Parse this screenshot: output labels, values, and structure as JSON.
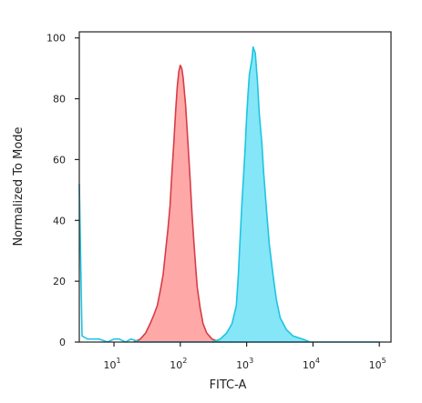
{
  "chart_data": {
    "type": "area",
    "title": "",
    "xlabel": "FITC-A",
    "ylabel": "Normalized To Mode",
    "x_scale": "log",
    "xlim": [
      3,
      150000
    ],
    "ylim": [
      0,
      102
    ],
    "grid": false,
    "x_ticks": [
      {
        "base": "10",
        "exp": "1",
        "value": 10
      },
      {
        "base": "10",
        "exp": "2",
        "value": 100
      },
      {
        "base": "10",
        "exp": "3",
        "value": 1000
      },
      {
        "base": "10",
        "exp": "4",
        "value": 10000
      },
      {
        "base": "10",
        "exp": "5",
        "value": 100000
      }
    ],
    "y_ticks": [
      "0",
      "20",
      "40",
      "60",
      "80",
      "100"
    ],
    "series": [
      {
        "color": "#d83c46",
        "fill": "#ff9090",
        "points": [
          [
            20,
            0
          ],
          [
            25,
            1
          ],
          [
            30,
            3
          ],
          [
            35,
            6
          ],
          [
            40,
            9
          ],
          [
            45,
            12
          ],
          [
            50,
            17
          ],
          [
            55,
            22
          ],
          [
            60,
            30
          ],
          [
            65,
            37
          ],
          [
            70,
            45
          ],
          [
            75,
            56
          ],
          [
            80,
            66
          ],
          [
            85,
            76
          ],
          [
            90,
            84
          ],
          [
            95,
            89
          ],
          [
            100,
            91
          ],
          [
            105,
            90
          ],
          [
            110,
            87
          ],
          [
            120,
            78
          ],
          [
            130,
            66
          ],
          [
            140,
            54
          ],
          [
            150,
            42
          ],
          [
            160,
            33
          ],
          [
            170,
            25
          ],
          [
            180,
            18
          ],
          [
            200,
            11
          ],
          [
            220,
            6
          ],
          [
            250,
            3
          ],
          [
            300,
            1
          ],
          [
            400,
            0
          ]
        ]
      },
      {
        "color": "#1dc5e2",
        "fill": "#63dff5",
        "points": [
          [
            300,
            0
          ],
          [
            400,
            1
          ],
          [
            500,
            3
          ],
          [
            600,
            6
          ],
          [
            700,
            12
          ],
          [
            750,
            22
          ],
          [
            800,
            35
          ],
          [
            850,
            46
          ],
          [
            900,
            55
          ],
          [
            950,
            64
          ],
          [
            1000,
            74
          ],
          [
            1050,
            82
          ],
          [
            1100,
            88
          ],
          [
            1200,
            93
          ],
          [
            1250,
            97
          ],
          [
            1350,
            95
          ],
          [
            1450,
            86
          ],
          [
            1550,
            75
          ],
          [
            1700,
            65
          ],
          [
            1800,
            56
          ],
          [
            2000,
            43
          ],
          [
            2200,
            32
          ],
          [
            2500,
            22
          ],
          [
            2800,
            14
          ],
          [
            3200,
            8
          ],
          [
            4000,
            4
          ],
          [
            5000,
            2
          ],
          [
            7000,
            1
          ],
          [
            9000,
            0
          ]
        ]
      },
      {
        "color": "#1dc5e2",
        "fill": "none",
        "points": [
          [
            3,
            52
          ],
          [
            3.3,
            2
          ],
          [
            4,
            1
          ],
          [
            6,
            1
          ],
          [
            8,
            0
          ],
          [
            10,
            1
          ],
          [
            12,
            1
          ],
          [
            15,
            0
          ],
          [
            18,
            1
          ],
          [
            25,
            0
          ],
          [
            150,
            0
          ],
          [
            1000,
            0
          ],
          [
            20000,
            0
          ],
          [
            100000,
            0
          ]
        ]
      }
    ]
  }
}
